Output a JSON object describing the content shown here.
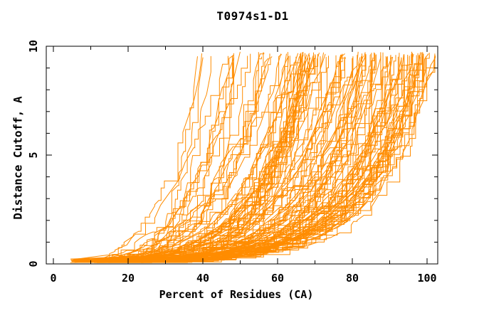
{
  "page": {
    "background": "#FFFFFF"
  },
  "chart_data": {
    "type": "line",
    "title": "T0974s1-D1",
    "xlabel": "Percent of Residues (CA)",
    "ylabel": "Distance Cutoff, A",
    "xlim": [
      -1.9,
      102.9
    ],
    "ylim": [
      0,
      10
    ],
    "x_major_ticks": [
      0,
      20,
      40,
      60,
      80,
      100
    ],
    "x_minor_tick_step": 10,
    "y_major_ticks": [
      0,
      5,
      10
    ],
    "y_minor_tick_step": 1,
    "ticks_mirrored_on_all_sides": true,
    "grid": false,
    "legend": "none",
    "curve_color": "#FF8C00",
    "axis_color": "#000000",
    "text_color": "#000000",
    "background": "#FFFFFF",
    "n_curves": 130,
    "series_semantics": "Each orange curve is one predicted model of target T0974s1-D1: cumulative percent of CA residues (x) whose distance to the target is within the distance cutoff (y). Curves rise monotonically from onsets at roughly 5-27% up to tops at roughly 9.5-9.75 A spread between 33% and 102%; best models hug the bottom until 80-100% and climb the right edge.",
    "generation": {
      "seed": 1974,
      "n_curves": 130,
      "quality_exponent": 0.55,
      "x_start_min": 4.5,
      "x_start_span": 22,
      "x_end_min": 33,
      "x_end_span": 69.5,
      "shape_base": 1.3,
      "shape_quality_gain": 5.2,
      "shape_noise": 1.6,
      "onset_softness": 0.25,
      "y_top_min": 9.45,
      "y_top_span": 0.3,
      "y_start_min": 0.05,
      "y_start_span": 0.18,
      "x_clip": 102.4,
      "step_corner_prob": 0.55,
      "jitter": 1.6,
      "big_jump_prob": 0.08,
      "big_jump_factor": 2.2
    }
  }
}
